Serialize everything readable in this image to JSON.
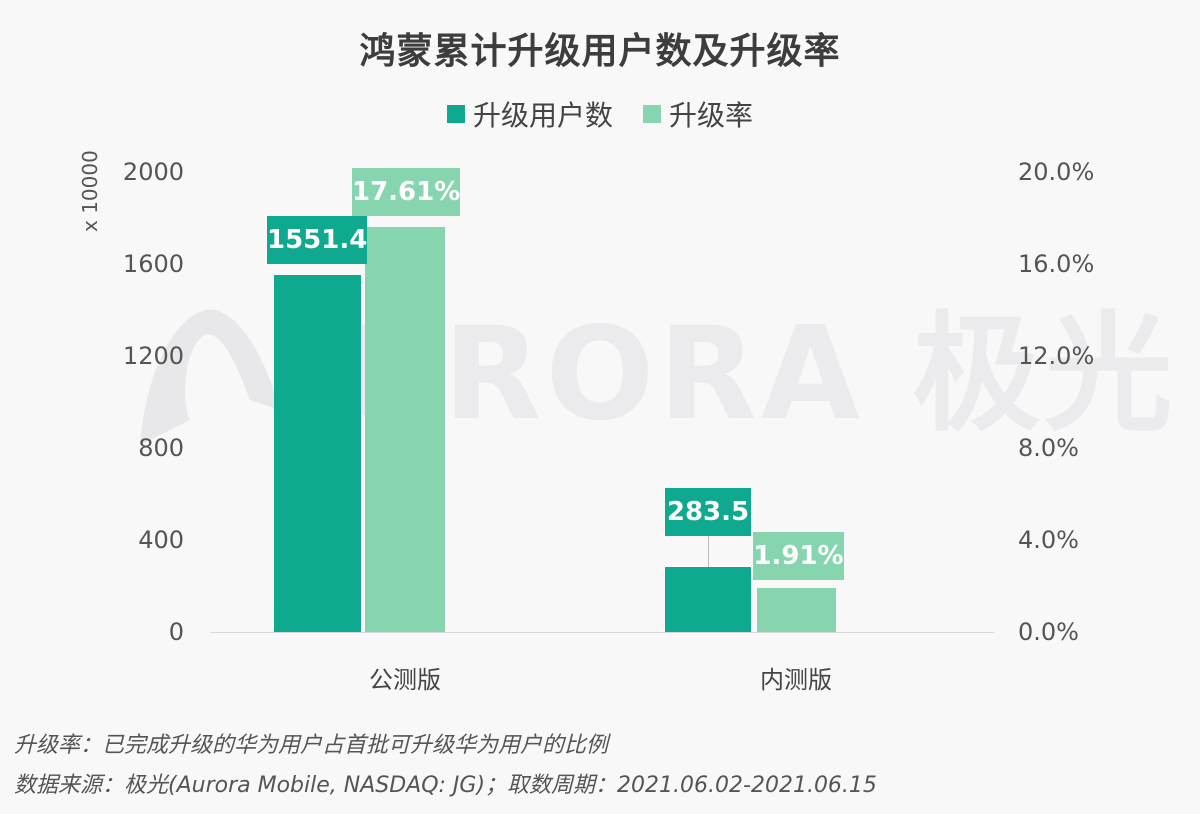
{
  "title": "鸿蒙累计升级用户数及升级率",
  "legend": [
    {
      "label": "升级用户数",
      "color": "#0fa98f"
    },
    {
      "label": "升级率",
      "color": "#86d5ae"
    }
  ],
  "colors": {
    "users": "#0fa98f",
    "rate": "#86d5ae",
    "label_users": "#0fa98f",
    "label_rate": "#86d5ae"
  },
  "y_axis_left": {
    "unit": "x 10000",
    "ticks": [
      "2000",
      "1600",
      "1200",
      "800",
      "400",
      "0"
    ]
  },
  "y_axis_right": {
    "ticks": [
      "20.0%",
      "16.0%",
      "12.0%",
      "8.0%",
      "4.0%",
      "0.0%"
    ]
  },
  "categories": [
    "公测版",
    "内测版"
  ],
  "data_labels": {
    "users": [
      "1551.4",
      "283.5"
    ],
    "rate": [
      "17.61%",
      "1.91%"
    ]
  },
  "watermark": {
    "text": "URORA 极光"
  },
  "footnotes": [
    "升级率：已完成升级的华为用户占首批可升级华为用户的比例",
    "数据来源：极光(Aurora Mobile, NASDAQ: JG)；取数周期：2021.06.02-2021.06.15"
  ],
  "chart_data": {
    "type": "bar",
    "title": "鸿蒙累计升级用户数及升级率",
    "categories": [
      "公测版",
      "内测版"
    ],
    "series": [
      {
        "name": "升级用户数",
        "axis": "left",
        "unit": "x 10000",
        "values": [
          1551.4,
          283.5
        ]
      },
      {
        "name": "升级率",
        "axis": "right",
        "unit": "%",
        "values": [
          17.61,
          1.91
        ]
      }
    ],
    "xlabel": "",
    "ylabel": "x 10000",
    "ylim": [
      0,
      2000
    ],
    "y2lim": [
      0,
      20
    ],
    "y_ticks": [
      0,
      400,
      800,
      1200,
      1600,
      2000
    ],
    "y2_ticks": [
      "0.0%",
      "4.0%",
      "8.0%",
      "12.0%",
      "16.0%",
      "20.0%"
    ],
    "grid": false,
    "legend_position": "top"
  }
}
